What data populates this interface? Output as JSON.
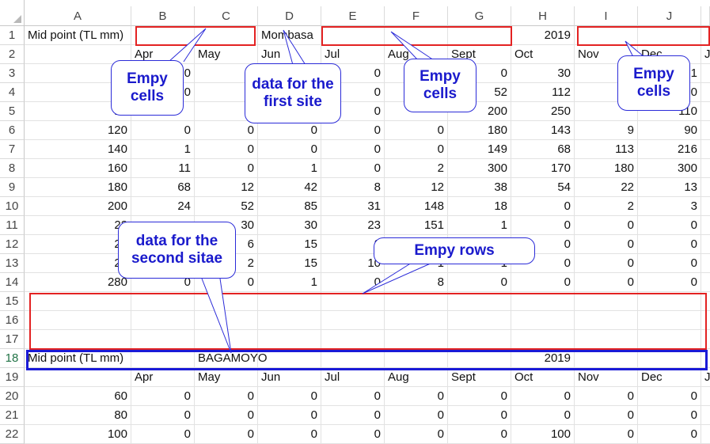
{
  "columns": [
    "A",
    "B",
    "C",
    "D",
    "E",
    "F",
    "G",
    "H",
    "I",
    "J"
  ],
  "rows": [
    "1",
    "2",
    "3",
    "4",
    "5",
    "6",
    "7",
    "8",
    "9",
    "10",
    "11",
    "12",
    "13",
    "14",
    "15",
    "16",
    "17",
    "18",
    "19",
    "20",
    "21",
    "22"
  ],
  "selected_row": "18",
  "sheet": {
    "r1": {
      "A": "Mid point (TL mm)",
      "D": "Mombasa",
      "H": "2019"
    },
    "r2": {
      "B": "Apr",
      "C": "May",
      "D": "Jun",
      "E": "Jul",
      "F": "Aug",
      "G": "Sept",
      "H": "Oct",
      "I": "Nov",
      "J": "Dec",
      "K": "J"
    },
    "r3": {
      "B": "0",
      "E": "0",
      "G": "0",
      "H": "30",
      "J": "1"
    },
    "r4": {
      "B": "0",
      "E": "0",
      "G": "52",
      "H": "112",
      "J": "0"
    },
    "r5": {
      "A": "10",
      "E": "0",
      "G": "200",
      "H": "250",
      "J": "110"
    },
    "r6": {
      "A": "120",
      "B": "0",
      "C": "0",
      "D": "0",
      "E": "0",
      "F": "0",
      "G": "180",
      "H": "143",
      "I": "9",
      "J": "90"
    },
    "r7": {
      "A": "140",
      "B": "1",
      "C": "0",
      "D": "0",
      "E": "0",
      "F": "0",
      "G": "149",
      "H": "68",
      "I": "113",
      "J": "216"
    },
    "r8": {
      "A": "160",
      "B": "11",
      "C": "0",
      "D": "1",
      "E": "0",
      "F": "2",
      "G": "300",
      "H": "170",
      "I": "180",
      "J": "300"
    },
    "r9": {
      "A": "180",
      "B": "68",
      "C": "12",
      "D": "42",
      "E": "8",
      "F": "12",
      "G": "38",
      "H": "54",
      "I": "22",
      "J": "13"
    },
    "r10": {
      "A": "200",
      "B": "24",
      "C": "52",
      "D": "85",
      "E": "31",
      "F": "148",
      "G": "18",
      "H": "0",
      "I": "2",
      "J": "3"
    },
    "r11": {
      "A": "22",
      "C": "30",
      "D": "30",
      "E": "23",
      "F": "151",
      "G": "1",
      "H": "0",
      "I": "0",
      "J": "0"
    },
    "r12": {
      "A": "24",
      "C": "6",
      "D": "15",
      "E": "2",
      "H": "0",
      "I": "0",
      "J": "0"
    },
    "r13": {
      "A": "26",
      "C": "2",
      "D": "15",
      "E": "10",
      "F": "1",
      "G": "1",
      "H": "0",
      "I": "0",
      "J": "0"
    },
    "r14": {
      "A": "280",
      "B": "0",
      "C": "0",
      "D": "1",
      "E": "0",
      "F": "8",
      "G": "0",
      "H": "0",
      "I": "0",
      "J": "0"
    },
    "r18": {
      "A": "Mid point (TL mm)",
      "C": "BAGAMOYO",
      "H": "2019"
    },
    "r19": {
      "B": "Apr",
      "C": "May",
      "D": "Jun",
      "E": "Jul",
      "F": "Aug",
      "G": "Sept",
      "H": "Oct",
      "I": "Nov",
      "J": "Dec",
      "K": "J"
    },
    "r20": {
      "A": "60",
      "B": "0",
      "C": "0",
      "D": "0",
      "E": "0",
      "F": "0",
      "G": "0",
      "H": "0",
      "I": "0",
      "J": "0"
    },
    "r21": {
      "A": "80",
      "B": "0",
      "C": "0",
      "D": "0",
      "E": "0",
      "F": "0",
      "G": "0",
      "H": "0",
      "I": "0",
      "J": "0"
    },
    "r22": {
      "A": "100",
      "B": "0",
      "C": "0",
      "D": "0",
      "E": "0",
      "F": "0",
      "G": "0",
      "H": "100",
      "I": "0",
      "J": "0"
    }
  },
  "callouts": {
    "empty_cells_left": "Empy\ncells",
    "first_site": "data for the\nfirst site",
    "empty_cells_mid": "Empy\ncells",
    "empty_cells_right": "Empy\ncells",
    "second_site": "data for the\nsecond sitae",
    "empty_rows": "Empy rows"
  },
  "colors": {
    "callout_text": "#1a1acc",
    "callout_border": "#2b2bd8",
    "red_box": "#e32222",
    "blue_box": "#1a1ad6",
    "selected_row_header": "#217346"
  }
}
